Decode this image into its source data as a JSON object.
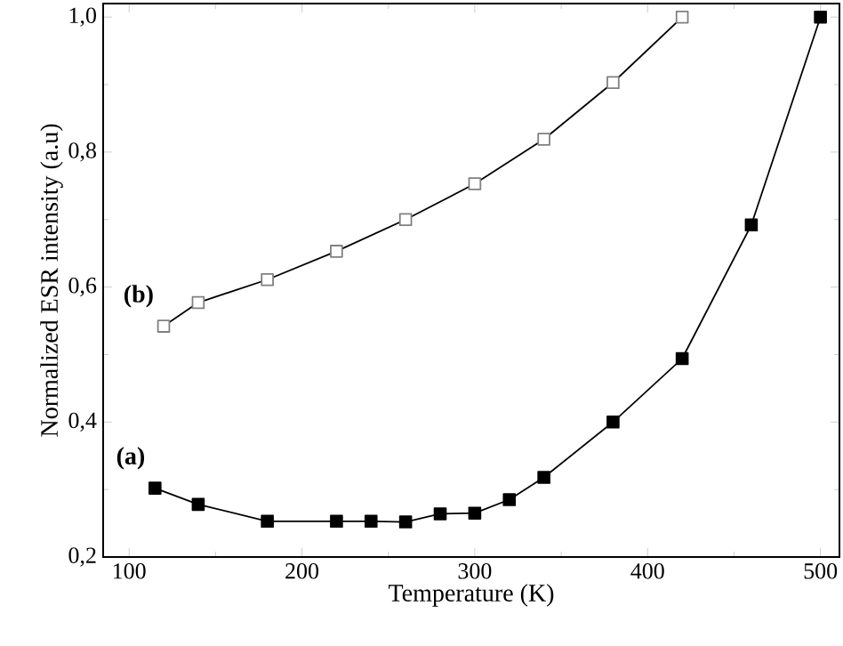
{
  "chart_data": {
    "type": "line",
    "xlabel": "Temperature (K)",
    "ylabel": "Normalized ESR intensity (a.u)",
    "xlim": [
      85,
      511
    ],
    "ylim": [
      0.2,
      1.02
    ],
    "xticks": [
      100,
      200,
      300,
      400,
      500
    ],
    "yticks": [
      {
        "value": 0.2,
        "label": "0,2"
      },
      {
        "value": 0.4,
        "label": "0,4"
      },
      {
        "value": 0.6,
        "label": "0,6"
      },
      {
        "value": 0.8,
        "label": "0,8"
      },
      {
        "value": 1.0,
        "label": "1,0"
      }
    ],
    "marker": "square",
    "grid": false,
    "annotations": [
      "(a)",
      "(b)"
    ],
    "series": [
      {
        "color": "#000000",
        "x": [
          115,
          140,
          180,
          220,
          240,
          260,
          280,
          300,
          320,
          340,
          380,
          420,
          460,
          500
        ],
        "values": [
          0.302,
          0.278,
          0.253,
          0.253,
          0.253,
          0.252,
          0.264,
          0.265,
          0.285,
          0.318,
          0.4,
          0.494,
          0.692,
          1.0
        ]
      },
      {
        "color": "#808080",
        "x": [
          120,
          140,
          180,
          220,
          260,
          300,
          340,
          380,
          420
        ],
        "values": [
          0.542,
          0.577,
          0.611,
          0.653,
          0.7,
          0.753,
          0.819,
          0.903,
          1.0
        ]
      }
    ]
  }
}
